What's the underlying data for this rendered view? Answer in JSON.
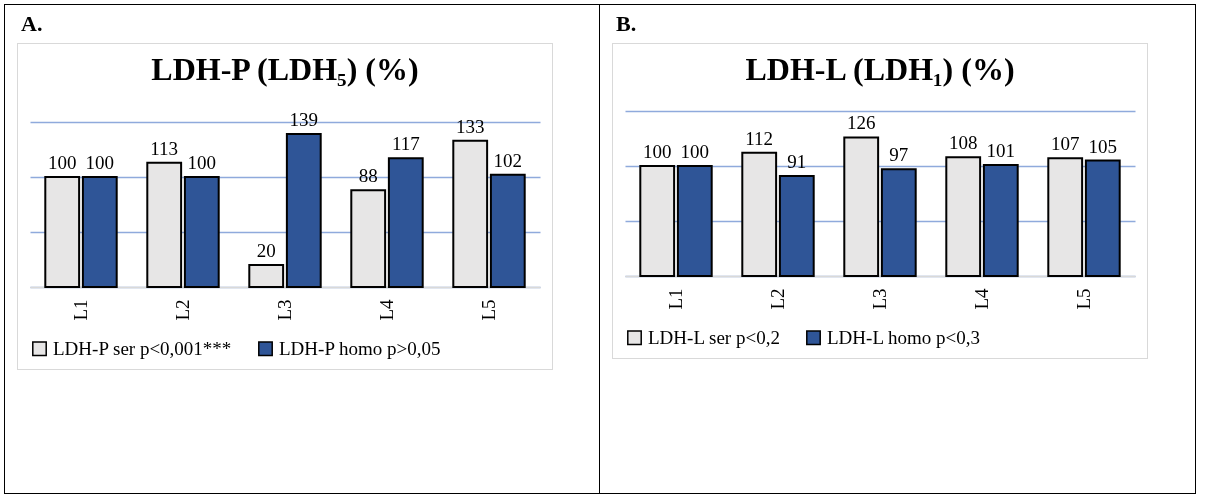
{
  "chart_data": [
    {
      "type": "bar",
      "title": "LDH-P (LDH₅) (%)",
      "annotations": [
        "A."
      ],
      "categories": [
        "L1",
        "L2",
        "L3",
        "L4",
        "L5"
      ],
      "series": [
        {
          "name": "LDH-P ser p<0,001***",
          "color": "#e7e6e6",
          "values": [
            100,
            113,
            20,
            88,
            133
          ]
        },
        {
          "name": "LDH-P homo p>0,05",
          "color": "#2f5597",
          "values": [
            100,
            100,
            139,
            117,
            102
          ]
        }
      ],
      "ylim": [
        0,
        150
      ],
      "yticks": [
        {
          "value": 0,
          "label": null
        },
        {
          "value": 50,
          "label": null
        },
        {
          "value": 100,
          "label": null
        },
        {
          "value": 150,
          "label": null
        }
      ],
      "tick_labels": "x",
      "grid": "y",
      "legend": "bottom",
      "data_labels": true
    },
    {
      "type": "bar",
      "title": "LDH-L (LDH₁) (%)",
      "annotations": [
        "B."
      ],
      "categories": [
        "L1",
        "L2",
        "L3",
        "L4",
        "L5"
      ],
      "series": [
        {
          "name": "LDH-L ser p<0,2",
          "color": "#e7e6e6",
          "values": [
            100,
            112,
            126,
            108,
            107
          ]
        },
        {
          "name": "LDH-L homo p<0,3",
          "color": "#2f5597",
          "values": [
            100,
            91,
            97,
            101,
            105
          ]
        }
      ],
      "ylim": [
        0,
        150
      ],
      "yticks": [
        {
          "value": 0,
          "label": null
        },
        {
          "value": 50,
          "label": null
        },
        {
          "value": 100,
          "label": null
        },
        {
          "value": 150,
          "label": null
        }
      ],
      "tick_labels": "x",
      "grid": "y",
      "legend": "bottom",
      "data_labels": true
    }
  ]
}
